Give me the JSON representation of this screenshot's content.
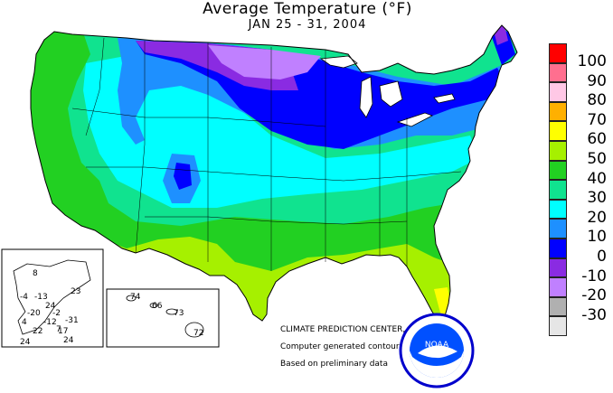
{
  "title": "Average Temperature (°F)",
  "subtitle": "JAN 25 - 31, 2004",
  "legend": {
    "labels": [
      "100",
      "90",
      "80",
      "70",
      "60",
      "50",
      "40",
      "30",
      "20",
      "10",
      "0",
      "-10",
      "-20",
      "-30"
    ],
    "colors": [
      "#ff0000",
      "#ff6f8f",
      "#ffc8e6",
      "#ffb000",
      "#ffff00",
      "#a6f000",
      "#22d022",
      "#10e38f",
      "#00ffff",
      "#1e90ff",
      "#0000ff",
      "#8a2be2",
      "#c080ff",
      "#b0b0b0",
      "#e6e6e6"
    ]
  },
  "credits": {
    "line1": "CLIMATE PREDICTION CENTER, NOAA",
    "line2": "Computer generated contours",
    "line3": "Based on preliminary data"
  },
  "noaa_logo": {
    "text": "NOAA"
  },
  "alaska": {
    "values": [
      {
        "label": "8"
      },
      {
        "label": "23"
      },
      {
        "label": "-4"
      },
      {
        "label": "-13"
      },
      {
        "label": "24"
      },
      {
        "label": "-20"
      },
      {
        "label": "-2"
      },
      {
        "label": "4"
      },
      {
        "label": "-12"
      },
      {
        "label": "-31"
      },
      {
        "label": "7"
      },
      {
        "label": "24"
      },
      {
        "label": "22"
      },
      {
        "label": "17"
      },
      {
        "label": "24"
      }
    ]
  },
  "hawaii": {
    "values": [
      {
        "label": "74"
      },
      {
        "label": "66"
      },
      {
        "label": "73"
      },
      {
        "label": "72"
      }
    ]
  },
  "temperature_bands": [
    "-20",
    "-10",
    "0",
    "10",
    "20",
    "30",
    "40",
    "50",
    "60"
  ]
}
